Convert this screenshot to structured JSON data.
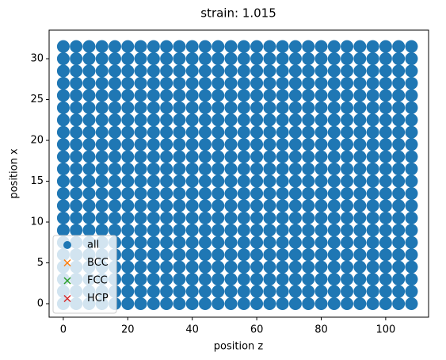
{
  "chart_data": {
    "type": "scatter",
    "title": "strain: 1.015",
    "xlabel": "position z",
    "ylabel": "position x",
    "xlim": [
      -4.4,
      113.3
    ],
    "ylim": [
      -1.65,
      33.5
    ],
    "xticks": [
      0,
      20,
      40,
      60,
      80,
      100
    ],
    "yticks": [
      0,
      5,
      10,
      15,
      20,
      25,
      30
    ],
    "legend": "lower left",
    "series": [
      {
        "name": "all",
        "color": "#1f77b4",
        "marker": "o",
        "x": [
          0,
          4,
          8,
          12,
          16,
          20,
          24,
          28,
          32,
          36,
          40,
          44,
          48,
          52,
          56,
          60,
          64,
          68,
          72,
          76,
          80,
          84,
          88,
          92,
          96,
          100,
          104,
          108,
          0,
          4,
          8,
          12,
          16,
          20,
          24,
          28,
          32,
          36,
          40,
          44,
          48,
          52,
          56,
          60,
          64,
          68,
          72,
          76,
          80,
          84,
          88,
          92,
          96,
          100,
          104,
          108,
          0,
          4,
          8,
          12,
          16,
          20,
          24,
          28,
          32,
          36,
          40,
          44,
          48,
          52,
          56,
          60,
          64,
          68,
          72,
          76,
          80,
          84,
          88,
          92,
          96,
          100,
          104,
          108,
          0,
          4,
          8,
          12,
          16,
          20,
          24,
          28,
          32,
          36,
          40,
          44,
          48,
          52,
          56,
          60,
          64,
          68,
          72,
          76,
          80,
          84,
          88,
          92,
          96,
          100,
          104,
          108,
          0,
          4,
          8,
          12,
          16,
          20,
          24,
          28,
          32,
          36,
          40,
          44,
          48,
          52,
          56,
          60,
          64,
          68,
          72,
          76,
          80,
          84,
          88,
          92,
          96,
          100,
          104,
          108,
          0,
          4,
          8,
          12,
          16,
          20,
          24,
          28,
          32,
          36,
          40,
          44,
          48,
          52,
          56,
          60,
          64,
          68,
          72,
          76,
          80,
          84,
          88,
          92,
          96,
          100,
          104,
          108,
          0,
          4,
          8,
          12,
          16,
          20,
          24,
          28,
          32,
          36,
          40,
          44,
          48,
          52,
          56,
          60,
          64,
          68,
          72,
          76,
          80,
          84,
          88,
          92,
          96,
          100,
          104,
          108,
          0,
          4,
          8,
          12,
          16,
          20,
          24,
          28,
          32,
          36,
          40,
          44,
          48,
          52,
          56,
          60,
          64,
          68,
          72,
          76,
          80,
          84,
          88,
          92,
          96,
          100,
          104,
          108,
          0,
          4,
          8,
          12,
          16,
          20,
          24,
          28,
          32,
          36,
          40,
          44,
          48,
          52,
          56,
          60,
          64,
          68,
          72,
          76,
          80,
          84,
          88,
          92,
          96,
          100,
          104,
          108,
          0,
          4,
          8,
          12,
          16,
          20,
          24,
          28,
          32,
          36,
          40,
          44,
          48,
          52,
          56,
          60,
          64,
          68,
          72,
          76,
          80,
          84,
          88,
          92,
          96,
          100,
          104,
          108,
          0,
          4,
          8,
          12,
          16,
          20,
          24,
          28,
          32,
          36,
          40,
          44,
          48,
          52,
          56,
          60,
          64,
          68,
          72,
          76,
          80,
          84,
          88,
          92,
          96,
          100,
          104,
          108,
          0,
          4,
          8,
          12,
          16,
          20,
          24,
          28,
          32,
          36,
          40,
          44,
          48,
          52,
          56,
          60,
          64,
          68,
          72,
          76,
          80,
          84,
          88,
          92,
          96,
          100,
          104,
          108,
          0,
          4,
          8,
          12,
          16,
          20,
          24,
          28,
          32,
          36,
          40,
          44,
          48,
          52,
          56,
          60,
          64,
          68,
          72,
          76,
          80,
          84,
          88,
          92,
          96,
          100,
          104,
          108,
          0,
          4,
          8,
          12,
          16,
          20,
          24,
          28,
          32,
          36,
          40,
          44,
          48,
          52,
          56,
          60,
          64,
          68,
          72,
          76,
          80,
          84,
          88,
          92,
          96,
          100,
          104,
          108,
          0,
          4,
          8,
          12,
          16,
          20,
          24,
          28,
          32,
          36,
          40,
          44,
          48,
          52,
          56,
          60,
          64,
          68,
          72,
          76,
          80,
          84,
          88,
          92,
          96,
          100,
          104,
          108,
          0,
          4,
          8,
          12,
          16,
          20,
          24,
          28,
          32,
          36,
          40,
          44,
          48,
          52,
          56,
          60,
          64,
          68,
          72,
          76,
          80,
          84,
          88,
          92,
          96,
          100,
          104,
          108,
          0,
          4,
          8,
          12,
          16,
          20,
          24,
          28,
          32,
          36,
          40,
          44,
          48,
          52,
          56,
          60,
          64,
          68,
          72,
          76,
          80,
          84,
          88,
          92,
          96,
          100,
          104,
          108,
          0,
          4,
          8,
          12,
          16,
          20,
          24,
          28,
          32,
          36,
          40,
          44,
          48,
          52,
          56,
          60,
          64,
          68,
          72,
          76,
          80,
          84,
          88,
          92,
          96,
          100,
          104,
          108,
          0,
          4,
          8,
          12,
          16,
          20,
          24,
          28,
          32,
          36,
          40,
          44,
          48,
          52,
          56,
          60,
          64,
          68,
          72,
          76,
          80,
          84,
          88,
          92,
          96,
          100,
          104,
          108,
          0,
          4,
          8,
          12,
          16,
          20,
          24,
          28,
          32,
          36,
          40,
          44,
          48,
          52,
          56,
          60,
          64,
          68,
          72,
          76,
          80,
          84,
          88,
          92,
          96,
          100,
          104,
          108,
          0,
          4,
          8,
          12,
          16,
          20,
          24,
          28,
          32,
          36,
          40,
          44,
          48,
          52,
          56,
          60,
          64,
          68,
          72,
          76,
          80,
          84,
          88,
          92,
          96,
          100,
          104,
          108,
          0,
          4,
          8,
          12,
          16,
          20,
          24,
          28,
          32,
          36,
          40,
          44,
          48,
          52,
          56,
          60,
          64,
          68,
          72,
          76,
          80,
          84,
          88,
          92,
          96,
          100,
          104,
          108
        ],
        "y": [
          0,
          0,
          0,
          0,
          0,
          0,
          0,
          0,
          0,
          0,
          0,
          0,
          0,
          0,
          0,
          0,
          0,
          0,
          0,
          0,
          0,
          0,
          0,
          0,
          0,
          0,
          0,
          0,
          1.5,
          1.5,
          1.5,
          1.5,
          1.5,
          1.5,
          1.5,
          1.5,
          1.5,
          1.5,
          1.5,
          1.5,
          1.5,
          1.5,
          1.5,
          1.5,
          1.5,
          1.5,
          1.5,
          1.5,
          1.5,
          1.5,
          1.5,
          1.5,
          1.5,
          1.5,
          1.5,
          1.5,
          3,
          3,
          3,
          3,
          3,
          3,
          3,
          3,
          3,
          3,
          3,
          3,
          3,
          3,
          3,
          3,
          3,
          3,
          3,
          3,
          3,
          3,
          3,
          3,
          3,
          3,
          3,
          3,
          4.5,
          4.5,
          4.5,
          4.5,
          4.5,
          4.5,
          4.5,
          4.5,
          4.5,
          4.5,
          4.5,
          4.5,
          4.5,
          4.5,
          4.5,
          4.5,
          4.5,
          4.5,
          4.5,
          4.5,
          4.5,
          4.5,
          4.5,
          4.5,
          4.5,
          4.5,
          4.5,
          4.5,
          6,
          6,
          6,
          6,
          6,
          6,
          6,
          6,
          6,
          6,
          6,
          6,
          6,
          6,
          6,
          6,
          6,
          6,
          6,
          6,
          6,
          6,
          6,
          6,
          6,
          6,
          6,
          6,
          7.5,
          7.5,
          7.5,
          7.5,
          7.5,
          7.5,
          7.5,
          7.5,
          7.5,
          7.5,
          7.5,
          7.5,
          7.5,
          7.5,
          7.5,
          7.5,
          7.5,
          7.5,
          7.5,
          7.5,
          7.5,
          7.5,
          7.5,
          7.5,
          7.5,
          7.5,
          7.5,
          7.5,
          9,
          9,
          9,
          9,
          9,
          9,
          9,
          9,
          9,
          9,
          9,
          9,
          9,
          9,
          9,
          9,
          9,
          9,
          9,
          9,
          9,
          9,
          9,
          9,
          9,
          9,
          9,
          9,
          10.5,
          10.5,
          10.5,
          10.5,
          10.5,
          10.5,
          10.5,
          10.5,
          10.5,
          10.5,
          10.5,
          10.5,
          10.5,
          10.5,
          10.5,
          10.5,
          10.5,
          10.5,
          10.5,
          10.5,
          10.5,
          10.5,
          10.5,
          10.5,
          10.5,
          10.5,
          10.5,
          10.5,
          12,
          12,
          12,
          12,
          12,
          12,
          12,
          12,
          12,
          12,
          12,
          12,
          12,
          12,
          12,
          12,
          12,
          12,
          12,
          12,
          12,
          12,
          12,
          12,
          12,
          12,
          12,
          12,
          13.5,
          13.5,
          13.5,
          13.5,
          13.5,
          13.5,
          13.5,
          13.5,
          13.5,
          13.5,
          13.5,
          13.5,
          13.5,
          13.5,
          13.5,
          13.5,
          13.5,
          13.5,
          13.5,
          13.5,
          13.5,
          13.5,
          13.5,
          13.5,
          13.5,
          13.5,
          13.5,
          13.5,
          15,
          15,
          15,
          15,
          15,
          15,
          15,
          15,
          15,
          15,
          15,
          15,
          15,
          15,
          15,
          15,
          15,
          15,
          15,
          15,
          15,
          15,
          15,
          15,
          15,
          15,
          15,
          15,
          16.5,
          16.5,
          16.5,
          16.5,
          16.5,
          16.5,
          16.5,
          16.5,
          16.5,
          16.5,
          16.5,
          16.5,
          16.5,
          16.5,
          16.5,
          16.5,
          16.5,
          16.5,
          16.5,
          16.5,
          16.5,
          16.5,
          16.5,
          16.5,
          16.5,
          16.5,
          16.5,
          16.5,
          18,
          18,
          18,
          18,
          18,
          18,
          18,
          18,
          18,
          18,
          18,
          18,
          18,
          18,
          18,
          18,
          18,
          18,
          18,
          18,
          18,
          18,
          18,
          18,
          18,
          18,
          18,
          18,
          19.5,
          19.5,
          19.5,
          19.5,
          19.5,
          19.5,
          19.5,
          19.5,
          19.5,
          19.5,
          19.5,
          19.5,
          19.5,
          19.5,
          19.5,
          19.5,
          19.5,
          19.5,
          19.5,
          19.5,
          19.5,
          19.5,
          19.5,
          19.5,
          19.5,
          19.5,
          19.5,
          19.5,
          21,
          21,
          21,
          21,
          21,
          21,
          21,
          21,
          21,
          21,
          21,
          21,
          21,
          21,
          21,
          21,
          21,
          21,
          21,
          21,
          21,
          21,
          21,
          21,
          21,
          21,
          21,
          21,
          22.5,
          22.5,
          22.5,
          22.5,
          22.5,
          22.5,
          22.5,
          22.5,
          22.5,
          22.5,
          22.5,
          22.5,
          22.5,
          22.5,
          22.5,
          22.5,
          22.5,
          22.5,
          22.5,
          22.5,
          22.5,
          22.5,
          22.5,
          22.5,
          22.5,
          22.5,
          22.5,
          22.5,
          24,
          24,
          24,
          24,
          24,
          24,
          24,
          24,
          24,
          24,
          24,
          24,
          24,
          24,
          24,
          24,
          24,
          24,
          24,
          24,
          24,
          24,
          24,
          24,
          24,
          24,
          24,
          24,
          25.5,
          25.5,
          25.5,
          25.5,
          25.5,
          25.5,
          25.5,
          25.5,
          25.5,
          25.5,
          25.5,
          25.5,
          25.5,
          25.5,
          25.5,
          25.5,
          25.5,
          25.5,
          25.5,
          25.5,
          25.5,
          25.5,
          25.5,
          25.5,
          25.5,
          25.5,
          25.5,
          25.5,
          27,
          27,
          27,
          27,
          27,
          27,
          27,
          27,
          27,
          27,
          27,
          27,
          27,
          27,
          27,
          27,
          27,
          27,
          27,
          27,
          27,
          27,
          27,
          27,
          27,
          27,
          27,
          27,
          28.5,
          28.5,
          28.5,
          28.5,
          28.5,
          28.5,
          28.5,
          28.5,
          28.5,
          28.5,
          28.5,
          28.5,
          28.5,
          28.5,
          28.5,
          28.5,
          28.5,
          28.5,
          28.5,
          28.5,
          28.5,
          28.5,
          28.5,
          28.5,
          28.5,
          28.5,
          28.5,
          28.5,
          30,
          30,
          30,
          30,
          30,
          30,
          30,
          30,
          30,
          30,
          30,
          30,
          30,
          30,
          30,
          30,
          30,
          30,
          30,
          30,
          30,
          30,
          30,
          30,
          30,
          30,
          30,
          30,
          31.5,
          31.5,
          31.5,
          31.5,
          31.5,
          31.5,
          31.5,
          31.5,
          31.5,
          31.5,
          31.5,
          31.5,
          31.5,
          31.5,
          31.5,
          31.5,
          31.5,
          31.5,
          31.5,
          31.5,
          31.5,
          31.5,
          31.5,
          31.5,
          31.5,
          31.5,
          31.5,
          31.5
        ]
      },
      {
        "name": "BCC",
        "color": "#ff7f0e",
        "marker": "x",
        "x": [],
        "y": []
      },
      {
        "name": "FCC",
        "color": "#2ca02c",
        "marker": "x",
        "x": [],
        "y": []
      },
      {
        "name": "HCP",
        "color": "#d62728",
        "marker": "x",
        "x": [],
        "y": []
      }
    ]
  }
}
